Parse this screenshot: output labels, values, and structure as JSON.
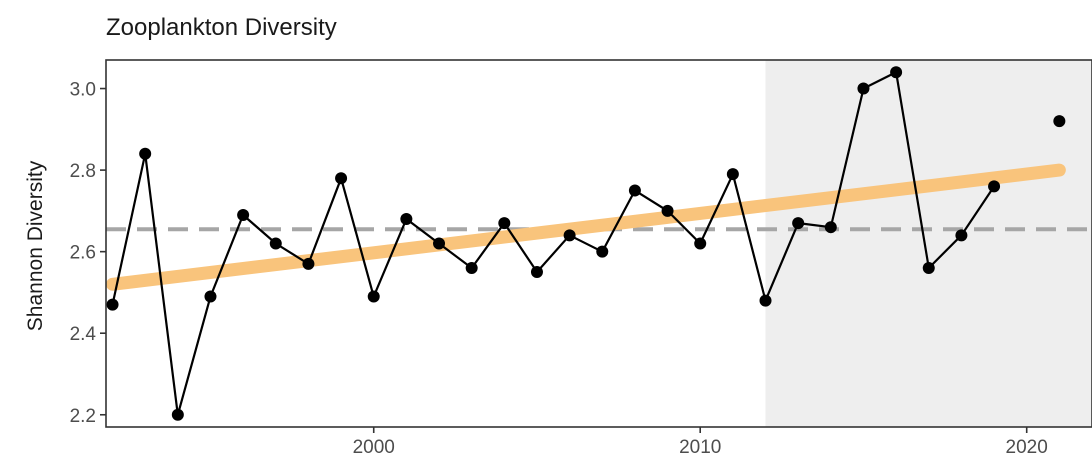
{
  "chart_data": {
    "type": "line",
    "title": "Zooplankton Diversity",
    "xlabel": "",
    "ylabel": "Shannon Diversity",
    "xlim": [
      1991.8,
      2022
    ],
    "ylim": [
      2.17,
      3.07
    ],
    "x_ticks": [
      2000,
      2010,
      2020
    ],
    "y_ticks": [
      2.2,
      2.4,
      2.6,
      2.8,
      3.0
    ],
    "y_tick_labels": [
      "2.2",
      "2.4",
      "2.6",
      "2.8",
      "3.0"
    ],
    "grid": false,
    "series": [
      {
        "x": [
          1992,
          1993,
          1994,
          1995,
          1996,
          1997,
          1998,
          1999,
          2000,
          2001,
          2002,
          2003,
          2004,
          2005,
          2006,
          2007,
          2008,
          2009,
          2010,
          2011,
          2012,
          2013,
          2014,
          2015,
          2016,
          2017,
          2018,
          2019
        ],
        "values": [
          2.47,
          2.84,
          2.2,
          2.49,
          2.69,
          2.62,
          2.57,
          2.78,
          2.49,
          2.68,
          2.62,
          2.56,
          2.67,
          2.55,
          2.64,
          2.6,
          2.75,
          2.7,
          2.62,
          2.79,
          2.48,
          2.67,
          2.66,
          3.0,
          3.04,
          2.56,
          2.64,
          2.76
        ],
        "color": "#000000"
      }
    ],
    "extra_points": [
      {
        "x": 2021,
        "y": 2.92
      }
    ],
    "mean_line": {
      "y": 2.655,
      "color": "#a6a6a6",
      "style": "dashed"
    },
    "trend_line": {
      "x": [
        1992,
        2021
      ],
      "y": [
        2.52,
        2.8
      ],
      "color": "#f9c47c"
    },
    "shaded_region": {
      "x_start": 2012,
      "color": "#eeeeee"
    }
  }
}
